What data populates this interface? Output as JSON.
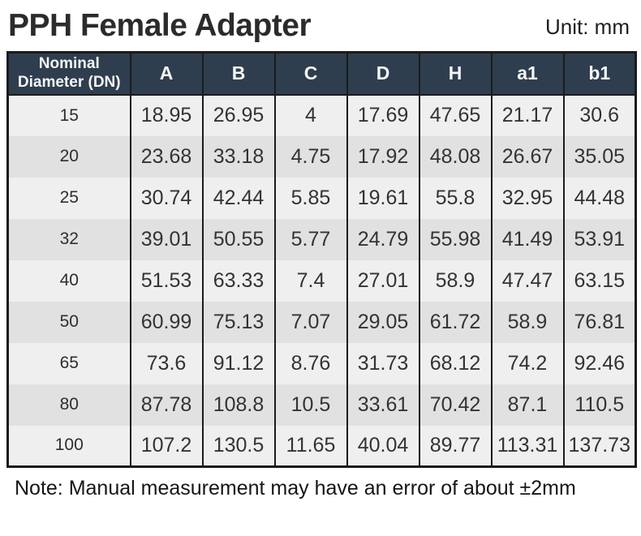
{
  "page": {
    "title": "PPH Female Adapter",
    "unit_label": "Unit: mm",
    "note": "Note: Manual measurement may have an error of about ±2mm"
  },
  "colors": {
    "header_bg": "#2e3e4e",
    "header_text": "#f5f5f5",
    "border": "#1b1b1b",
    "row_light": "#efefef",
    "row_dark": "#e1e1e1"
  },
  "table": {
    "columns": [
      "Nominal Diameter (DN)",
      "A",
      "B",
      "C",
      "D",
      "H",
      "a1",
      "b1"
    ],
    "rows": [
      [
        "15",
        "18.95",
        "26.95",
        "4",
        "17.69",
        "47.65",
        "21.17",
        "30.6"
      ],
      [
        "20",
        "23.68",
        "33.18",
        "4.75",
        "17.92",
        "48.08",
        "26.67",
        "35.05"
      ],
      [
        "25",
        "30.74",
        "42.44",
        "5.85",
        "19.61",
        "55.8",
        "32.95",
        "44.48"
      ],
      [
        "32",
        "39.01",
        "50.55",
        "5.77",
        "24.79",
        "55.98",
        "41.49",
        "53.91"
      ],
      [
        "40",
        "51.53",
        "63.33",
        "7.4",
        "27.01",
        "58.9",
        "47.47",
        "63.15"
      ],
      [
        "50",
        "60.99",
        "75.13",
        "7.07",
        "29.05",
        "61.72",
        "58.9",
        "76.81"
      ],
      [
        "65",
        "73.6",
        "91.12",
        "8.76",
        "31.73",
        "68.12",
        "74.2",
        "92.46"
      ],
      [
        "80",
        "87.78",
        "108.8",
        "10.5",
        "33.61",
        "70.42",
        "87.1",
        "110.5"
      ],
      [
        "100",
        "107.2",
        "130.5",
        "11.65",
        "40.04",
        "89.77",
        "113.31",
        "137.73"
      ]
    ]
  }
}
